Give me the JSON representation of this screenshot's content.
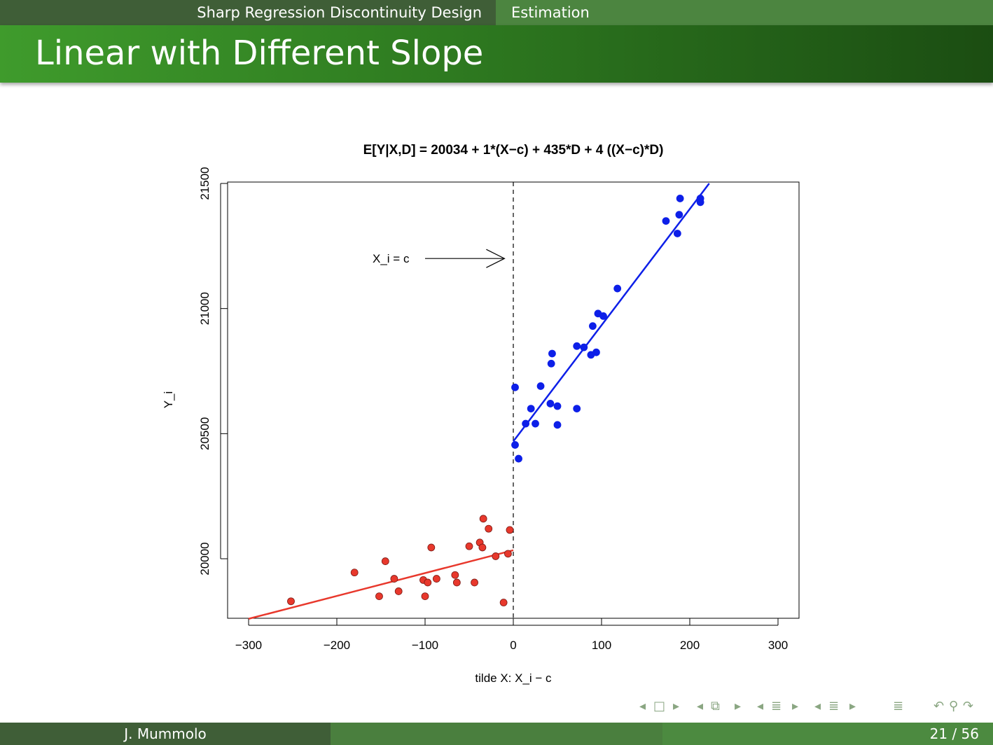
{
  "header": {
    "section": "Sharp Regression Discontinuity Design",
    "subsection": "Estimation"
  },
  "slide": {
    "title": "Linear with Different Slope"
  },
  "footer": {
    "author": "J. Mummolo",
    "page": "21 / 56"
  },
  "nav": {
    "icons": [
      "nav-frame-left",
      "nav-frame",
      "nav-frame-right",
      "nav-subsection-left",
      "nav-subsection",
      "nav-subsection-right",
      "nav-section-left",
      "nav-section",
      "nav-section-right",
      "nav-appendix",
      "nav-back",
      "nav-search",
      "nav-forward"
    ],
    "color": "#8aa682"
  },
  "chart_data": {
    "type": "scatter",
    "title": "E[Y|X,D] = 20034 + 1*(X−c) + 435*D + 4 ((X−c)*D)",
    "xlabel": "tilde X: X_i − c",
    "ylabel": "Y_i",
    "xlim": [
      -325,
      325
    ],
    "ylim": [
      19760,
      21500
    ],
    "xticks": [
      -300,
      -200,
      -100,
      0,
      100,
      200,
      300
    ],
    "xtick_labels": [
      "−300",
      "−200",
      "−100",
      "0",
      "100",
      "200",
      "300"
    ],
    "yticks": [
      20000,
      20500,
      21000,
      21500
    ],
    "ytick_labels": [
      "20000",
      "20500",
      "21000",
      "21500"
    ],
    "grid": false,
    "cutoff": {
      "x": 0,
      "style": "dashed"
    },
    "annotation": {
      "text": "X_i = c",
      "arrow_to": [
        -10,
        21200
      ]
    },
    "series": [
      {
        "group": "below-cutoff",
        "color": "#e8382c",
        "points": [
          [
            -252,
            19830
          ],
          [
            -180,
            19945
          ],
          [
            -145,
            19990
          ],
          [
            -135,
            19920
          ],
          [
            -130,
            19870
          ],
          [
            -152,
            19850
          ],
          [
            -102,
            19915
          ],
          [
            -100,
            19850
          ],
          [
            -97,
            19905
          ],
          [
            -93,
            20045
          ],
          [
            -87,
            19920
          ],
          [
            -66,
            19935
          ],
          [
            -64,
            19905
          ],
          [
            -50,
            20050
          ],
          [
            -44,
            19905
          ],
          [
            -38,
            20065
          ],
          [
            -35,
            20045
          ],
          [
            -34,
            20160
          ],
          [
            -28,
            20120
          ],
          [
            -20,
            20010
          ],
          [
            -11,
            19825
          ],
          [
            -6,
            20020
          ],
          [
            -4,
            20115
          ]
        ],
        "fit": [
          [
            -300,
            19760
          ],
          [
            0,
            20034
          ]
        ]
      },
      {
        "group": "above-cutoff",
        "color": "#0d1fe8",
        "points": [
          [
            2,
            20455
          ],
          [
            2,
            20685
          ],
          [
            6,
            20400
          ],
          [
            14,
            20540
          ],
          [
            20,
            20600
          ],
          [
            25,
            20540
          ],
          [
            31,
            20690
          ],
          [
            42,
            20620
          ],
          [
            43,
            20780
          ],
          [
            44,
            20820
          ],
          [
            50,
            20610
          ],
          [
            50,
            20535
          ],
          [
            72,
            20600
          ],
          [
            72,
            20850
          ],
          [
            80,
            20845
          ],
          [
            88,
            20815
          ],
          [
            90,
            20930
          ],
          [
            94,
            20825
          ],
          [
            96,
            20980
          ],
          [
            102,
            20970
          ],
          [
            118,
            21080
          ],
          [
            173,
            21350
          ],
          [
            186,
            21300
          ],
          [
            188,
            21375
          ],
          [
            189,
            21440
          ],
          [
            212,
            21440
          ],
          [
            212,
            21425
          ]
        ],
        "fit": [
          [
            0,
            20469
          ],
          [
            222,
            21500
          ]
        ]
      }
    ]
  }
}
